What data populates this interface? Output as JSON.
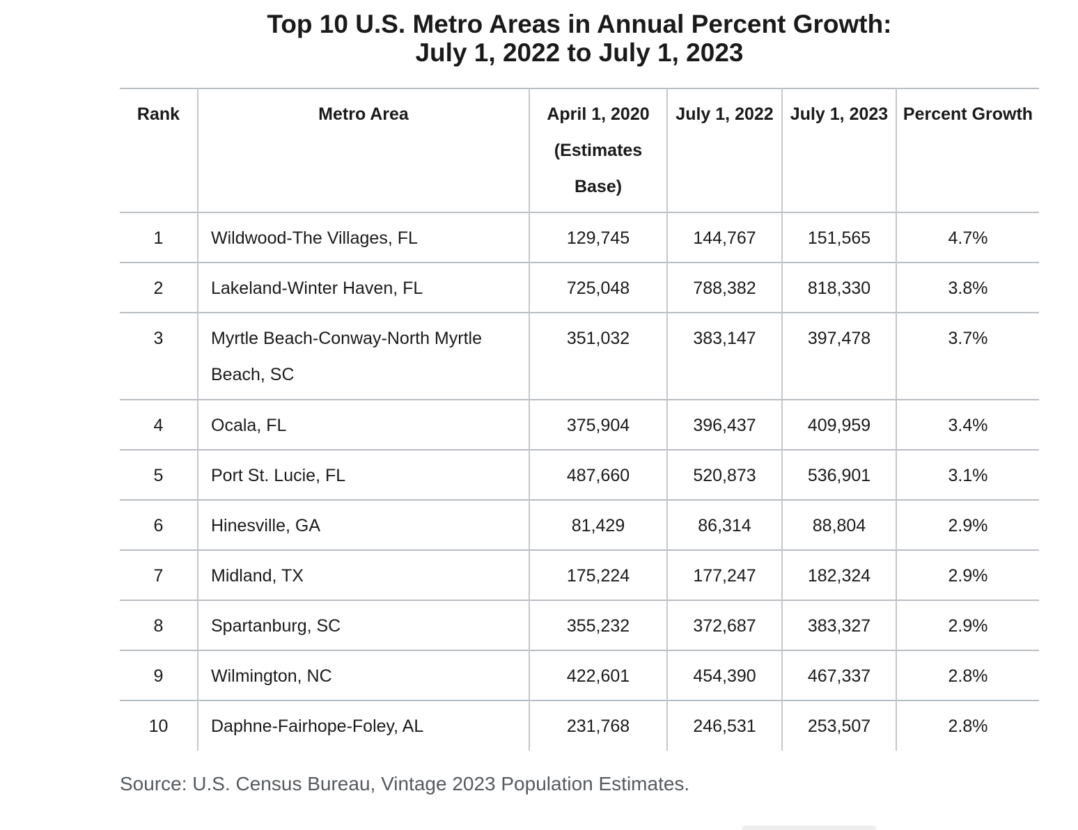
{
  "title": {
    "line1": "Top 10 U.S. Metro Areas in Annual Percent Growth:",
    "line2": "July 1, 2022 to July 1, 2023"
  },
  "headers": {
    "rank": "Rank",
    "metro": "Metro Area",
    "base": "April 1, 2020 (Estimates Base)",
    "y2022": "July 1, 2022",
    "y2023": "July 1, 2023",
    "growth": "Percent Growth"
  },
  "rows": [
    {
      "rank": "1",
      "metro": "Wildwood-The Villages, FL",
      "base": "129,745",
      "y2022": "144,767",
      "y2023": "151,565",
      "growth": "4.7%"
    },
    {
      "rank": "2",
      "metro": "Lakeland-Winter Haven, FL",
      "base": "725,048",
      "y2022": "788,382",
      "y2023": "818,330",
      "growth": "3.8%"
    },
    {
      "rank": "3",
      "metro": "Myrtle Beach-Conway-North Myrtle Beach, SC",
      "base": "351,032",
      "y2022": "383,147",
      "y2023": "397,478",
      "growth": "3.7%"
    },
    {
      "rank": "4",
      "metro": "Ocala, FL",
      "base": "375,904",
      "y2022": "396,437",
      "y2023": "409,959",
      "growth": "3.4%"
    },
    {
      "rank": "5",
      "metro": "Port St. Lucie, FL",
      "base": "487,660",
      "y2022": "520,873",
      "y2023": "536,901",
      "growth": "3.1%"
    },
    {
      "rank": "6",
      "metro": "Hinesville, GA",
      "base": "81,429",
      "y2022": "86,314",
      "y2023": "88,804",
      "growth": "2.9%"
    },
    {
      "rank": "7",
      "metro": "Midland, TX",
      "base": "175,224",
      "y2022": "177,247",
      "y2023": "182,324",
      "growth": "2.9%"
    },
    {
      "rank": "8",
      "metro": "Spartanburg, SC",
      "base": "355,232",
      "y2022": "372,687",
      "y2023": "383,327",
      "growth": "2.9%"
    },
    {
      "rank": "9",
      "metro": "Wilmington, NC",
      "base": "422,601",
      "y2022": "454,390",
      "y2023": "467,337",
      "growth": "2.8%"
    },
    {
      "rank": "10",
      "metro": "Daphne-Fairhope-Foley, AL",
      "base": "231,768",
      "y2022": "246,531",
      "y2023": "253,507",
      "growth": "2.8%"
    }
  ],
  "source": "Source: U.S. Census Bureau, Vintage 2023 Population Estimates."
}
